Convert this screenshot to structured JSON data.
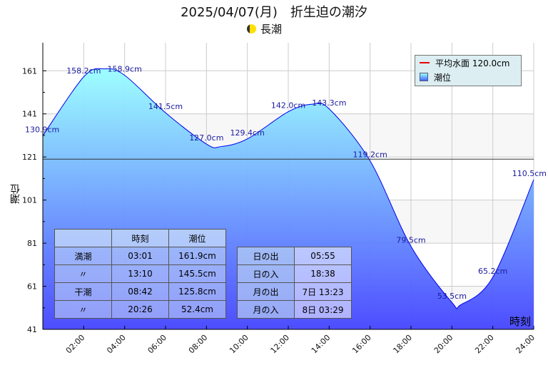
{
  "title": "2025/04/07(月)　折生迫の潮汐",
  "subtitle": "長潮",
  "moon_icon": "moon-phase-icon",
  "legend": {
    "mean_label": "平均水面 120.0cm",
    "tide_label": "潮位",
    "mean_color": "#e00000"
  },
  "high_low_table": {
    "headers": [
      "",
      "時刻",
      "潮位"
    ],
    "rows": [
      [
        "満潮",
        "03:01",
        "161.9cm"
      ],
      [
        "〃",
        "13:10",
        "145.5cm"
      ],
      [
        "干潮",
        "08:42",
        "125.8cm"
      ],
      [
        "〃",
        "20:26",
        "52.4cm"
      ]
    ]
  },
  "sun_moon_table": {
    "rows": [
      [
        "日の出",
        "05:55"
      ],
      [
        "日の入",
        "18:38"
      ],
      [
        "月の出",
        "7日 13:23"
      ],
      [
        "月の入",
        "8日 03:29"
      ]
    ]
  },
  "chart_data": {
    "type": "area",
    "title": "2025/04/07(月)　折生迫の潮汐",
    "xlabel": "時刻",
    "ylabel": "潮位",
    "xlim": [
      0,
      24
    ],
    "ylim": [
      41,
      174
    ],
    "yticks": [
      41,
      61,
      81,
      101,
      121,
      141,
      161
    ],
    "xticks": [
      {
        "v": 2,
        "label": "02:00"
      },
      {
        "v": 4,
        "label": "04:00"
      },
      {
        "v": 6,
        "label": "06:00"
      },
      {
        "v": 8,
        "label": "08:00"
      },
      {
        "v": 10,
        "label": "10:00"
      },
      {
        "v": 12,
        "label": "12:00"
      },
      {
        "v": 14,
        "label": "14:00"
      },
      {
        "v": 16,
        "label": "16:00"
      },
      {
        "v": 18,
        "label": "18:00"
      },
      {
        "v": 20,
        "label": "20:00"
      },
      {
        "v": 22,
        "label": "22:00"
      },
      {
        "v": 24,
        "label": "24:00"
      }
    ],
    "mean_level": 120.0,
    "points": [
      [
        0,
        130.9
      ],
      [
        2,
        158.2
      ],
      [
        3.02,
        161.9
      ],
      [
        4,
        158.9
      ],
      [
        6,
        141.5
      ],
      [
        8,
        127.0
      ],
      [
        8.7,
        125.8
      ],
      [
        10,
        129.4
      ],
      [
        12,
        142.0
      ],
      [
        13.17,
        145.5
      ],
      [
        14,
        143.3
      ],
      [
        16,
        119.2
      ],
      [
        18,
        79.5
      ],
      [
        20,
        53.5
      ],
      [
        20.43,
        52.4
      ],
      [
        22,
        65.2
      ],
      [
        24,
        110.5
      ]
    ],
    "data_labels": [
      {
        "x": 0,
        "y": 130.9,
        "label": "130.9cm"
      },
      {
        "x": 2,
        "y": 158.2,
        "label": "158.2cm"
      },
      {
        "x": 4,
        "y": 158.9,
        "label": "158.9cm"
      },
      {
        "x": 6,
        "y": 141.5,
        "label": "141.5cm"
      },
      {
        "x": 8,
        "y": 127.0,
        "label": "127.0cm"
      },
      {
        "x": 10,
        "y": 129.4,
        "label": "129.4cm"
      },
      {
        "x": 12,
        "y": 142.0,
        "label": "142.0cm"
      },
      {
        "x": 14,
        "y": 143.3,
        "label": "143.3cm"
      },
      {
        "x": 16,
        "y": 119.2,
        "label": "119.2cm"
      },
      {
        "x": 18,
        "y": 79.5,
        "label": "79.5cm"
      },
      {
        "x": 20,
        "y": 53.5,
        "label": "53.5cm"
      },
      {
        "x": 22,
        "y": 65.2,
        "label": "65.2cm"
      },
      {
        "x": 24,
        "y": 110.5,
        "label": "110.5cm"
      }
    ]
  }
}
